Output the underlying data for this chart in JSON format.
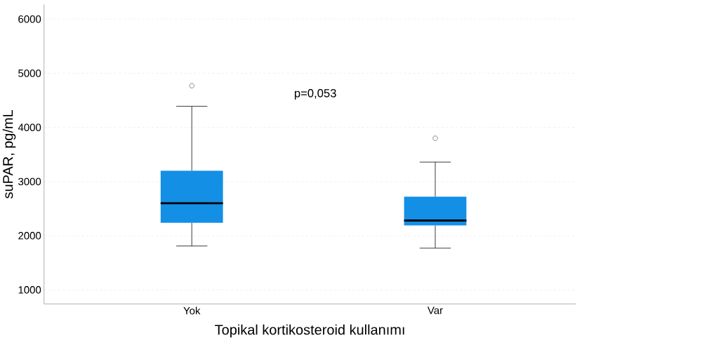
{
  "chart_data": {
    "type": "box",
    "categories": [
      "Yok",
      "Var"
    ],
    "xlabel": "Topikal kortikosteroid kullanımı",
    "ylabel": "suPAR, pg/mL",
    "ylim": [
      740,
      6270
    ],
    "yticks": [
      1000,
      2000,
      3000,
      4000,
      5000,
      6000
    ],
    "grid": "y",
    "series": [
      {
        "color": "#148fe6",
        "boxes": [
          {
            "low": 1810,
            "q1": 2240,
            "median": 2600,
            "q3": 3200,
            "high": 4390,
            "outliers": [
              4770
            ]
          },
          {
            "low": 1770,
            "q1": 2190,
            "median": 2280,
            "q3": 2720,
            "high": 3360,
            "outliers": [
              3800
            ]
          }
        ]
      }
    ],
    "annotations": [
      "p=0,053"
    ]
  }
}
